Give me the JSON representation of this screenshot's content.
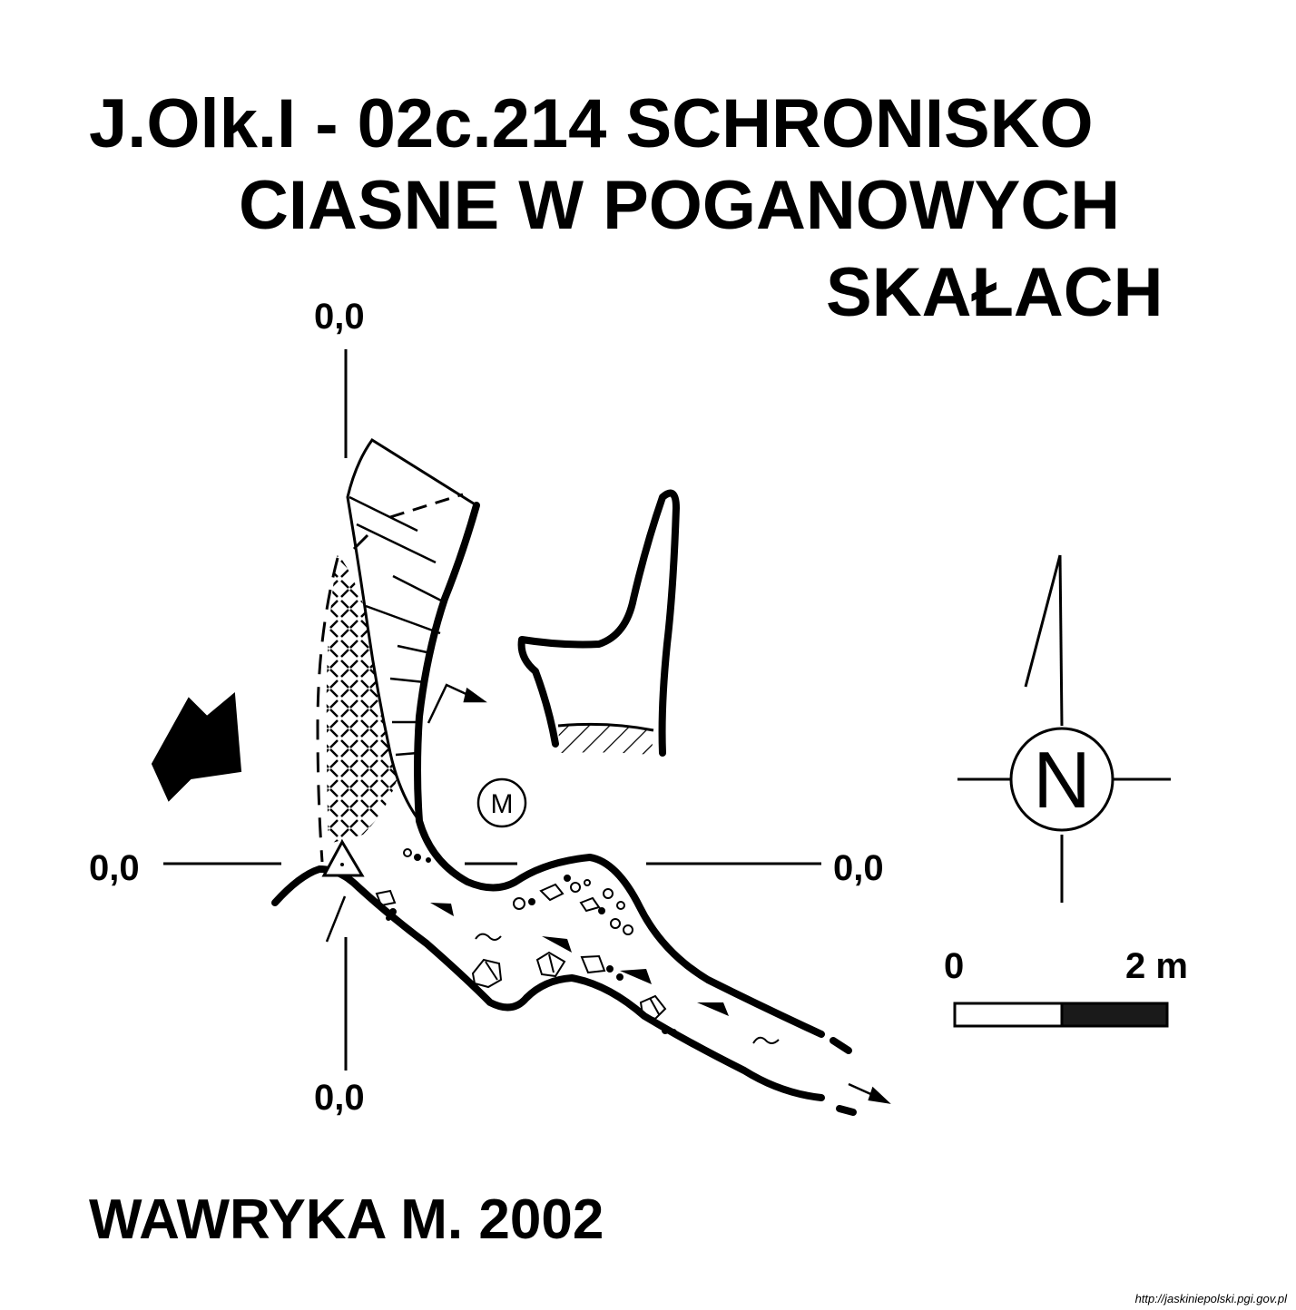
{
  "title": {
    "line1": "J.Olk.I - 02c.214  SCHRONISKO",
    "line2": "CIASNE W POGANOWYCH",
    "line3": "SKAŁACH"
  },
  "coordinates": {
    "top": "0,0",
    "bottom": "0,0",
    "left": "0,0",
    "right": "0,0"
  },
  "north_arrow": {
    "letter": "N"
  },
  "scale_bar": {
    "start_label": "0",
    "end_label": "2 m"
  },
  "cave_marker": {
    "letter": "M"
  },
  "author": "WAWRYKA M. 2002",
  "source_url": "http://jaskiniepolski.pgi.gov.pl"
}
